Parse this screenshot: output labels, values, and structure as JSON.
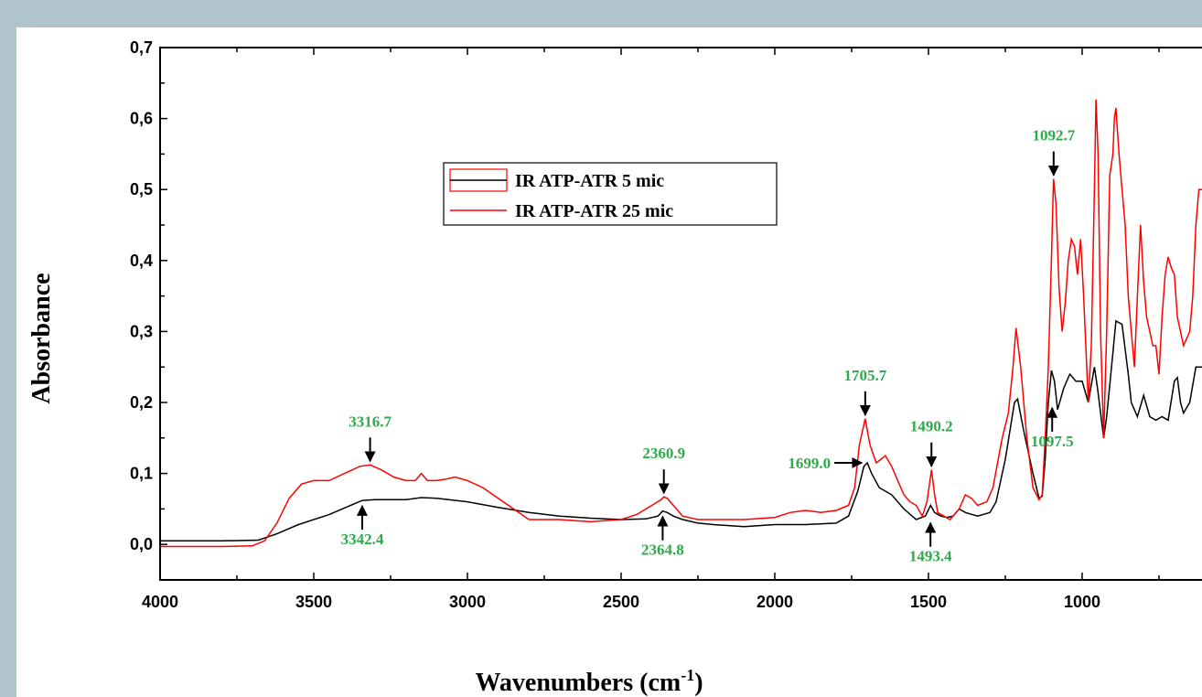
{
  "chart_data": {
    "type": "line",
    "xlabel": "Wavenumbers (cm",
    "xlabel_sup": "-1",
    "xlabel_end": ")",
    "ylabel": "Absorbance",
    "xlim": [
      4000,
      610
    ],
    "ylim": [
      -0.05,
      0.7
    ],
    "x_ticks": [
      4000,
      3500,
      3000,
      2500,
      2000,
      1500,
      1000
    ],
    "x_tick_labels": [
      "4000",
      "3500",
      "3000",
      "2500",
      "2000",
      "1500",
      "1000"
    ],
    "y_ticks": [
      0.0,
      0.1,
      0.2,
      0.3,
      0.4,
      0.5,
      0.6,
      0.7
    ],
    "y_tick_labels": [
      "0,0",
      "0,1",
      "0,2",
      "0,3",
      "0,4",
      "0,5",
      "0,6",
      "0,7"
    ],
    "legend_position": "upper-left",
    "series": [
      {
        "name": "IR ATP-ATR 5 mic",
        "color": "#000000",
        "points": [
          [
            4000,
            0.005
          ],
          [
            3800,
            0.005
          ],
          [
            3680,
            0.006
          ],
          [
            3620,
            0.015
          ],
          [
            3550,
            0.028
          ],
          [
            3450,
            0.042
          ],
          [
            3380,
            0.055
          ],
          [
            3342,
            0.062
          ],
          [
            3300,
            0.063
          ],
          [
            3200,
            0.063
          ],
          [
            3150,
            0.066
          ],
          [
            3100,
            0.065
          ],
          [
            3000,
            0.06
          ],
          [
            2900,
            0.052
          ],
          [
            2800,
            0.045
          ],
          [
            2700,
            0.04
          ],
          [
            2600,
            0.037
          ],
          [
            2500,
            0.035
          ],
          [
            2420,
            0.036
          ],
          [
            2380,
            0.04
          ],
          [
            2365,
            0.047
          ],
          [
            2350,
            0.045
          ],
          [
            2330,
            0.04
          ],
          [
            2300,
            0.035
          ],
          [
            2250,
            0.03
          ],
          [
            2200,
            0.028
          ],
          [
            2100,
            0.025
          ],
          [
            2000,
            0.028
          ],
          [
            1900,
            0.028
          ],
          [
            1800,
            0.03
          ],
          [
            1760,
            0.04
          ],
          [
            1730,
            0.075
          ],
          [
            1710,
            0.11
          ],
          [
            1699,
            0.115
          ],
          [
            1685,
            0.1
          ],
          [
            1660,
            0.08
          ],
          [
            1620,
            0.07
          ],
          [
            1580,
            0.05
          ],
          [
            1540,
            0.035
          ],
          [
            1510,
            0.04
          ],
          [
            1493,
            0.055
          ],
          [
            1480,
            0.045
          ],
          [
            1460,
            0.04
          ],
          [
            1440,
            0.038
          ],
          [
            1420,
            0.04
          ],
          [
            1400,
            0.05
          ],
          [
            1380,
            0.045
          ],
          [
            1340,
            0.04
          ],
          [
            1300,
            0.045
          ],
          [
            1280,
            0.06
          ],
          [
            1250,
            0.12
          ],
          [
            1220,
            0.2
          ],
          [
            1210,
            0.205
          ],
          [
            1190,
            0.16
          ],
          [
            1160,
            0.1
          ],
          [
            1140,
            0.065
          ],
          [
            1130,
            0.068
          ],
          [
            1120,
            0.12
          ],
          [
            1110,
            0.2
          ],
          [
            1100,
            0.245
          ],
          [
            1090,
            0.23
          ],
          [
            1080,
            0.19
          ],
          [
            1060,
            0.22
          ],
          [
            1040,
            0.24
          ],
          [
            1020,
            0.23
          ],
          [
            1000,
            0.23
          ],
          [
            980,
            0.2
          ],
          [
            960,
            0.25
          ],
          [
            950,
            0.22
          ],
          [
            930,
            0.15
          ],
          [
            920,
            0.18
          ],
          [
            900,
            0.27
          ],
          [
            890,
            0.315
          ],
          [
            870,
            0.31
          ],
          [
            850,
            0.24
          ],
          [
            840,
            0.2
          ],
          [
            820,
            0.18
          ],
          [
            800,
            0.21
          ],
          [
            780,
            0.18
          ],
          [
            760,
            0.175
          ],
          [
            740,
            0.18
          ],
          [
            720,
            0.175
          ],
          [
            700,
            0.23
          ],
          [
            690,
            0.235
          ],
          [
            680,
            0.2
          ],
          [
            670,
            0.185
          ],
          [
            650,
            0.2
          ],
          [
            630,
            0.25
          ],
          [
            610,
            0.25
          ]
        ]
      },
      {
        "name": "IR ATP-ATR 25 mic",
        "color": "#ff0000",
        "points": [
          [
            4000,
            -0.003
          ],
          [
            3800,
            -0.003
          ],
          [
            3700,
            -0.002
          ],
          [
            3660,
            0.005
          ],
          [
            3620,
            0.03
          ],
          [
            3580,
            0.065
          ],
          [
            3540,
            0.085
          ],
          [
            3500,
            0.09
          ],
          [
            3450,
            0.09
          ],
          [
            3400,
            0.1
          ],
          [
            3350,
            0.11
          ],
          [
            3316,
            0.112
          ],
          [
            3280,
            0.105
          ],
          [
            3240,
            0.095
          ],
          [
            3200,
            0.09
          ],
          [
            3170,
            0.09
          ],
          [
            3150,
            0.1
          ],
          [
            3130,
            0.09
          ],
          [
            3100,
            0.09
          ],
          [
            3070,
            0.092
          ],
          [
            3040,
            0.095
          ],
          [
            3000,
            0.09
          ],
          [
            2950,
            0.08
          ],
          [
            2900,
            0.065
          ],
          [
            2850,
            0.05
          ],
          [
            2800,
            0.035
          ],
          [
            2700,
            0.035
          ],
          [
            2600,
            0.032
          ],
          [
            2500,
            0.035
          ],
          [
            2450,
            0.042
          ],
          [
            2400,
            0.055
          ],
          [
            2370,
            0.063
          ],
          [
            2361,
            0.067
          ],
          [
            2350,
            0.065
          ],
          [
            2340,
            0.06
          ],
          [
            2320,
            0.05
          ],
          [
            2300,
            0.04
          ],
          [
            2250,
            0.035
          ],
          [
            2200,
            0.035
          ],
          [
            2100,
            0.035
          ],
          [
            2000,
            0.038
          ],
          [
            1950,
            0.045
          ],
          [
            1900,
            0.048
          ],
          [
            1850,
            0.045
          ],
          [
            1800,
            0.048
          ],
          [
            1760,
            0.055
          ],
          [
            1740,
            0.08
          ],
          [
            1725,
            0.14
          ],
          [
            1706,
            0.177
          ],
          [
            1690,
            0.14
          ],
          [
            1670,
            0.115
          ],
          [
            1655,
            0.12
          ],
          [
            1640,
            0.125
          ],
          [
            1620,
            0.11
          ],
          [
            1600,
            0.09
          ],
          [
            1580,
            0.07
          ],
          [
            1560,
            0.06
          ],
          [
            1540,
            0.055
          ],
          [
            1520,
            0.04
          ],
          [
            1505,
            0.06
          ],
          [
            1490,
            0.105
          ],
          [
            1480,
            0.07
          ],
          [
            1470,
            0.045
          ],
          [
            1450,
            0.04
          ],
          [
            1430,
            0.035
          ],
          [
            1400,
            0.05
          ],
          [
            1380,
            0.07
          ],
          [
            1360,
            0.065
          ],
          [
            1340,
            0.055
          ],
          [
            1310,
            0.06
          ],
          [
            1290,
            0.08
          ],
          [
            1260,
            0.15
          ],
          [
            1240,
            0.185
          ],
          [
            1225,
            0.25
          ],
          [
            1215,
            0.305
          ],
          [
            1200,
            0.25
          ],
          [
            1180,
            0.15
          ],
          [
            1160,
            0.08
          ],
          [
            1140,
            0.063
          ],
          [
            1130,
            0.07
          ],
          [
            1120,
            0.15
          ],
          [
            1110,
            0.25
          ],
          [
            1100,
            0.4
          ],
          [
            1093,
            0.515
          ],
          [
            1085,
            0.48
          ],
          [
            1075,
            0.36
          ],
          [
            1065,
            0.3
          ],
          [
            1055,
            0.34
          ],
          [
            1045,
            0.4
          ],
          [
            1035,
            0.43
          ],
          [
            1025,
            0.42
          ],
          [
            1015,
            0.38
          ],
          [
            1005,
            0.43
          ],
          [
            995,
            0.35
          ],
          [
            980,
            0.2
          ],
          [
            970,
            0.28
          ],
          [
            960,
            0.5
          ],
          [
            955,
            0.627
          ],
          [
            948,
            0.55
          ],
          [
            940,
            0.3
          ],
          [
            930,
            0.15
          ],
          [
            920,
            0.3
          ],
          [
            910,
            0.52
          ],
          [
            900,
            0.55
          ],
          [
            895,
            0.6
          ],
          [
            890,
            0.615
          ],
          [
            880,
            0.55
          ],
          [
            870,
            0.5
          ],
          [
            860,
            0.45
          ],
          [
            850,
            0.35
          ],
          [
            840,
            0.3
          ],
          [
            830,
            0.25
          ],
          [
            820,
            0.35
          ],
          [
            810,
            0.45
          ],
          [
            800,
            0.37
          ],
          [
            790,
            0.32
          ],
          [
            780,
            0.3
          ],
          [
            770,
            0.28
          ],
          [
            760,
            0.28
          ],
          [
            750,
            0.24
          ],
          [
            740,
            0.32
          ],
          [
            730,
            0.38
          ],
          [
            720,
            0.405
          ],
          [
            710,
            0.39
          ],
          [
            700,
            0.38
          ],
          [
            690,
            0.32
          ],
          [
            680,
            0.3
          ],
          [
            670,
            0.28
          ],
          [
            650,
            0.3
          ],
          [
            640,
            0.35
          ],
          [
            630,
            0.45
          ],
          [
            620,
            0.5
          ],
          [
            610,
            0.5
          ]
        ]
      }
    ],
    "annotations": [
      {
        "label": "3316.7",
        "x": 3316.7,
        "y": 0.112,
        "from": "above",
        "color": "#2eaa4a"
      },
      {
        "label": "3342.4",
        "x": 3342.4,
        "y": 0.062,
        "from": "below",
        "color": "#2eaa4a"
      },
      {
        "label": "2360.9",
        "x": 2360.9,
        "y": 0.067,
        "from": "above",
        "color": "#2eaa4a"
      },
      {
        "label": "2364.8",
        "x": 2364.8,
        "y": 0.047,
        "from": "below",
        "color": "#2eaa4a"
      },
      {
        "label": "1705.7",
        "x": 1705.7,
        "y": 0.177,
        "from": "above",
        "color": "#2eaa4a"
      },
      {
        "label": "1699.0",
        "x": 1699.0,
        "y": 0.115,
        "from": "left",
        "color": "#2eaa4a"
      },
      {
        "label": "1490.2",
        "x": 1490.2,
        "y": 0.105,
        "from": "above",
        "color": "#2eaa4a"
      },
      {
        "label": "1493.4",
        "x": 1493.4,
        "y": 0.038,
        "from": "below",
        "color": "#2eaa4a"
      },
      {
        "label": "1092.7",
        "x": 1092.7,
        "y": 0.515,
        "from": "above",
        "color": "#2eaa4a"
      },
      {
        "label": "1097.5",
        "x": 1097.5,
        "y": 0.2,
        "from": "below",
        "color": "#2eaa4a"
      }
    ]
  }
}
